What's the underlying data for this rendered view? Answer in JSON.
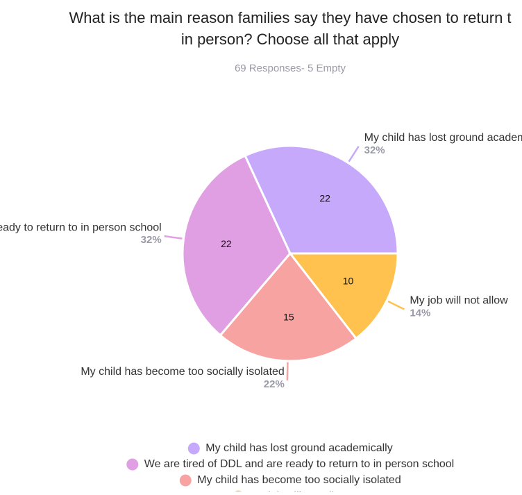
{
  "chart_data": {
    "type": "pie",
    "title": [
      "What is the main reason families say they have chosen to return t",
      "in person? Choose all that apply"
    ],
    "subtitle": "69 Responses- 5 Empty",
    "categories": [
      "My child has lost ground academically",
      "We are tired of DDL and are ready to return to in person school",
      "My child has become too socially isolated",
      "My job will not allow"
    ],
    "values": [
      22,
      22,
      15,
      10
    ],
    "percent_labels": [
      "32%",
      "32%",
      "22%",
      "14%"
    ],
    "colors": [
      "#c6a9fb",
      "#e09fe2",
      "#f7a3a2",
      "#ffc24f"
    ],
    "legend": "bottom"
  }
}
